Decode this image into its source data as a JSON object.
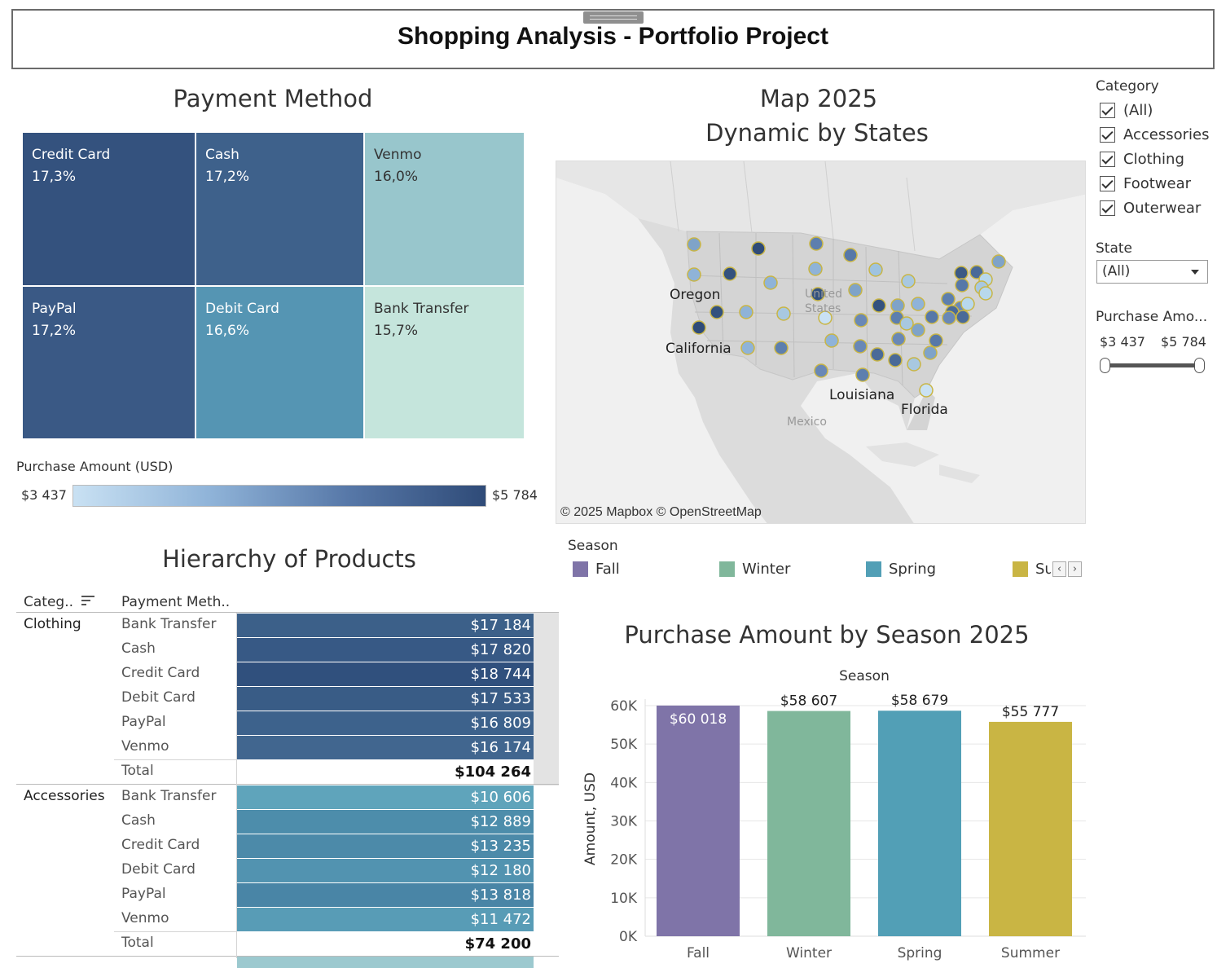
{
  "header": {
    "title": "Shopping Analysis - Portfolio Project"
  },
  "payment": {
    "title": "Payment Method",
    "cells": [
      {
        "name": "Credit Card",
        "pct": "17,3%"
      },
      {
        "name": "Cash",
        "pct": "17,2%"
      },
      {
        "name": "Venmo",
        "pct": "16,0%"
      },
      {
        "name": "PayPal",
        "pct": "17,2%"
      },
      {
        "name": "Debit Card",
        "pct": "16,6%"
      },
      {
        "name": "Bank Transfer",
        "pct": "15,7%"
      }
    ],
    "colors": [
      "#34527e",
      "#3e618b",
      "#98c6cc",
      "#3a5985",
      "#5595b3",
      "#c5e5dc"
    ],
    "legend_title": "Purchase Amount (USD)",
    "legend_min": "$3 437",
    "legend_max": "$5 784"
  },
  "map": {
    "title_line1": "Map 2025",
    "title_line2": "Dynamic by States",
    "labels": [
      "Oregon",
      "California",
      "Louisiana",
      "Florida",
      "United States",
      "Mexico"
    ],
    "attribution": "© 2025 Mapbox  © OpenStreetMap"
  },
  "filters": {
    "category_title": "Category",
    "categories": [
      "(All)",
      "Accessories",
      "Clothing",
      "Footwear",
      "Outerwear"
    ],
    "state_title": "State",
    "state_value": "(All)",
    "amount_title": "Purchase Amo...",
    "amount_min": "$3 437",
    "amount_max": "$5 784"
  },
  "season_legend": {
    "title": "Season",
    "items": [
      {
        "name": "Fall",
        "color": "#7f74a8"
      },
      {
        "name": "Winter",
        "color": "#80b79b"
      },
      {
        "name": "Spring",
        "color": "#529fb6"
      },
      {
        "name": "Su",
        "color": "#c9b544"
      }
    ]
  },
  "hierarchy": {
    "title": "Hierarchy of Products",
    "col_category": "Categ..",
    "col_payment": "Payment Meth..",
    "groups": [
      {
        "category": "Clothing",
        "rows": [
          {
            "method": "Bank Transfer",
            "value": "$17 184",
            "color": "#3c6089"
          },
          {
            "method": "Cash",
            "value": "$17 820",
            "color": "#375985"
          },
          {
            "method": "Credit Card",
            "value": "$18 744",
            "color": "#30507d"
          },
          {
            "method": "Debit Card",
            "value": "$17 533",
            "color": "#395c86"
          },
          {
            "method": "PayPal",
            "value": "$16 809",
            "color": "#3d628c"
          },
          {
            "method": "Venmo",
            "value": "$16 174",
            "color": "#41668f"
          }
        ],
        "total_label": "Total",
        "total": "$104 264"
      },
      {
        "category": "Accessories",
        "rows": [
          {
            "method": "Bank Transfer",
            "value": "$10 606",
            "color": "#5fa4bb"
          },
          {
            "method": "Cash",
            "value": "$12 889",
            "color": "#4d8dab"
          },
          {
            "method": "Credit Card",
            "value": "$13 235",
            "color": "#4c8aa9"
          },
          {
            "method": "Debit Card",
            "value": "$12 180",
            "color": "#5293b0"
          },
          {
            "method": "PayPal",
            "value": "$13 818",
            "color": "#4985a6"
          },
          {
            "method": "Venmo",
            "value": "$11 472",
            "color": "#589cb6"
          }
        ],
        "total_label": "Total",
        "total": "$74 200"
      }
    ]
  },
  "season_chart": {
    "title": "Purchase Amount by Season 2025"
  },
  "chart_data": {
    "type": "bar",
    "title": "Purchase Amount by Season 2025",
    "top_label": "Season",
    "categories": [
      "Fall",
      "Winter",
      "Spring",
      "Summer"
    ],
    "values": [
      60018,
      58607,
      58679,
      55777
    ],
    "value_labels": [
      "$60 018",
      "$58 607",
      "$58 679",
      "$55 777"
    ],
    "colors": [
      "#7f74a8",
      "#80b79b",
      "#529fb6",
      "#c9b544"
    ],
    "ylabel": "Amount, USD",
    "yticks": [
      "0K",
      "10K",
      "20K",
      "30K",
      "40K",
      "50K",
      "60K"
    ],
    "ylim": [
      0,
      61000
    ],
    "grid": true
  }
}
